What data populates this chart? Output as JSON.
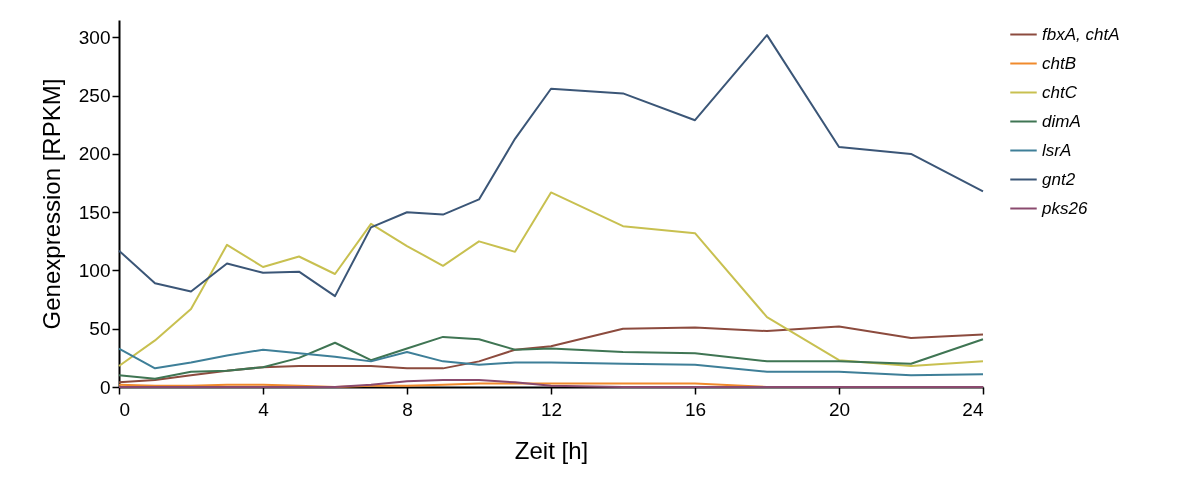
{
  "chart_data": {
    "type": "line",
    "xlabel": "Zeit [h]",
    "ylabel": "Genexpression [RPKM]",
    "x": [
      0,
      1,
      2,
      3,
      4,
      5,
      6,
      7,
      8,
      9,
      10,
      11,
      12,
      14,
      16,
      18,
      20,
      22,
      24
    ],
    "xlim": [
      0,
      24
    ],
    "xticks": [
      0,
      4,
      8,
      12,
      16,
      20,
      24
    ],
    "ylim": [
      0,
      315
    ],
    "yticks": [
      0,
      50,
      100,
      150,
      200,
      250,
      300
    ],
    "grid": false,
    "legend": "right",
    "marker": "none",
    "line_style": "solid",
    "series": [
      {
        "name": "fbxA, chtA",
        "color": "#8c4b3e",
        "values": [
          4,
          6,
          10,
          14,
          17,
          18,
          18,
          18,
          16,
          16,
          22,
          32,
          35,
          50,
          51,
          48,
          52,
          42,
          45
        ]
      },
      {
        "name": "chtB",
        "color": "#f08a2c",
        "values": [
          2,
          1,
          1,
          2,
          2,
          1,
          0,
          1,
          1,
          2,
          3,
          3,
          3,
          3,
          3,
          0,
          0,
          null,
          null
        ]
      },
      {
        "name": "chtC",
        "color": "#c8c050",
        "values": [
          18,
          40,
          67,
          122,
          103,
          112,
          97,
          140,
          121,
          104,
          125,
          116,
          167,
          138,
          132,
          60,
          23,
          18,
          22
        ]
      },
      {
        "name": "dimA",
        "color": "#3f7553",
        "values": [
          10,
          7,
          13,
          14,
          17,
          25,
          38,
          23,
          33,
          43,
          41,
          32,
          33,
          30,
          29,
          22,
          22,
          20,
          41
        ]
      },
      {
        "name": "lsrA",
        "color": "#3e7f98",
        "values": [
          33,
          16,
          21,
          27,
          32,
          29,
          26,
          22,
          30,
          22,
          19,
          21,
          21,
          20,
          19,
          13,
          13,
          10,
          11
        ]
      },
      {
        "name": "gnt2",
        "color": "#3b5677",
        "values": [
          117,
          89,
          82,
          106,
          98,
          99,
          78,
          137,
          150,
          148,
          161,
          213,
          256,
          252,
          229,
          302,
          206,
          200,
          168
        ]
      },
      {
        "name": "pks26",
        "color": "#8a4a6e",
        "values": [
          0,
          0,
          0,
          0,
          0,
          0,
          0,
          2,
          5,
          6,
          6,
          4,
          1,
          0,
          0,
          0,
          0,
          0,
          0
        ]
      }
    ]
  }
}
